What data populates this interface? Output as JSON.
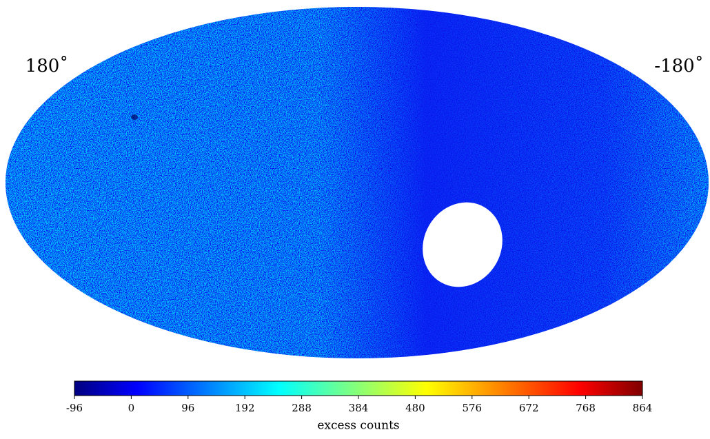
{
  "chart_data": {
    "type": "skymap",
    "lon_labels": [
      "180˚",
      "-180˚"
    ],
    "colorbar": {
      "lim": [
        -96,
        864
      ],
      "ticks": [
        -96,
        0,
        96,
        192,
        288,
        384,
        480,
        576,
        672,
        768,
        864
      ],
      "label": "excess counts",
      "colors": [
        "#00007f",
        "#0000ff",
        "#00ffff",
        "#ffff00",
        "#ff0000",
        "#7f0000"
      ]
    }
  }
}
